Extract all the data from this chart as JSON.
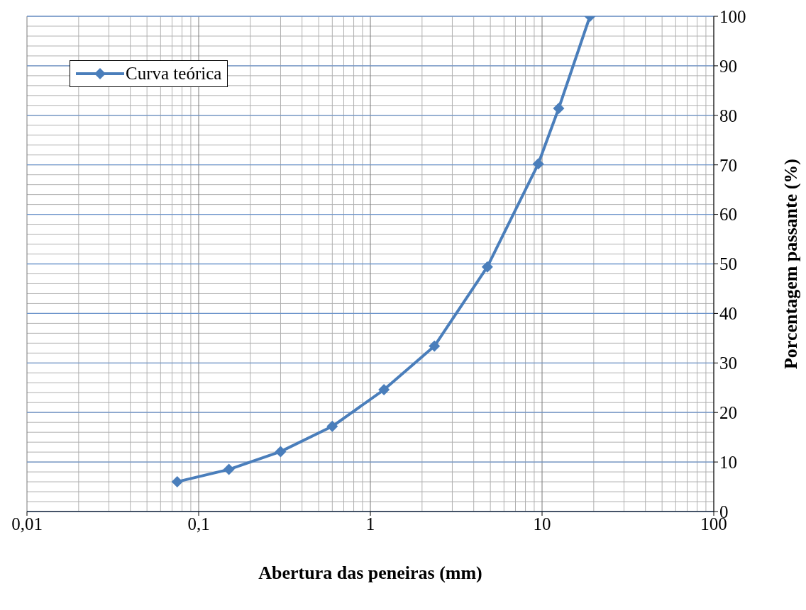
{
  "chart_data": {
    "type": "line",
    "xlabel": "Abertura das peneiras (mm)",
    "ylabel": "Porcentagem passante (%)",
    "x": [
      0.075,
      0.15,
      0.3,
      0.6,
      1.2,
      2.36,
      4.8,
      9.5,
      12.5,
      19
    ],
    "series": [
      {
        "name": "Curva teórica",
        "color": "#4a7ebb",
        "values": [
          6,
          8.5,
          12.1,
          17.2,
          24.6,
          33.4,
          49.4,
          70.2,
          81.4,
          100
        ]
      }
    ],
    "log": "x",
    "xlim": [
      0.01,
      100
    ],
    "xticks": [
      {
        "value": 0.01,
        "label": "0,01"
      },
      {
        "value": 0.1,
        "label": "0,1"
      },
      1,
      10,
      100
    ],
    "ylim": [
      0,
      100
    ],
    "yticks": [
      0,
      10,
      20,
      30,
      40,
      50,
      60,
      70,
      80,
      90,
      100
    ],
    "grid": true,
    "legend": "top left",
    "marker": "diamond",
    "line_style": "solid"
  }
}
